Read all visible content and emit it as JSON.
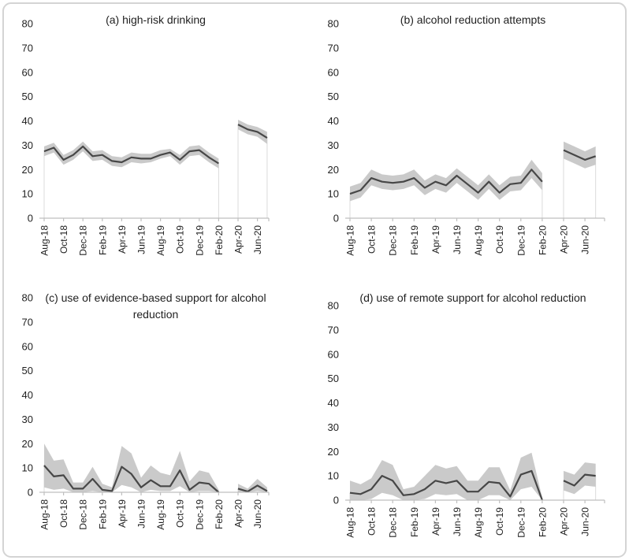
{
  "figure": {
    "kind": "2x2 panel line charts with confidence bands",
    "colors": {
      "mean_line": "#474747",
      "ci_band": "#c7c7c7",
      "axis": "#bfbfbf",
      "drop_line": "#dbdbdb",
      "frame_border": "#d4d4d4",
      "text": "#1f1f1f",
      "background": "#ffffff"
    }
  },
  "chart_data": [
    {
      "id": "a",
      "type": "line",
      "title": "(a) high-risk drinking",
      "ylim": [
        0,
        80
      ],
      "y_ticks": [
        80,
        70,
        60,
        50,
        40,
        30,
        20,
        10,
        0
      ],
      "x_tick_labels": [
        "Aug-18",
        "Oct-18",
        "Dec-18",
        "Feb-19",
        "Apr-19",
        "Jun-19",
        "Aug-19",
        "Oct-19",
        "Dec-19",
        "Feb-20",
        "Apr-20",
        "Jun-20"
      ],
      "legend": "none",
      "grid": "off",
      "segments": [
        {
          "x": [
            "Aug-18",
            "Sep-18",
            "Oct-18",
            "Nov-18",
            "Dec-18",
            "Jan-19",
            "Feb-19",
            "Mar-19",
            "Apr-19",
            "May-19",
            "Jun-19",
            "Jul-19",
            "Aug-19",
            "Sep-19",
            "Oct-19",
            "Nov-19",
            "Dec-19",
            "Jan-20",
            "Feb-20"
          ],
          "mean": [
            27.5,
            29,
            24,
            26,
            29.5,
            25.5,
            26,
            23.5,
            23,
            25,
            24.5,
            24.5,
            26,
            27,
            24,
            27.5,
            28,
            25,
            22.5
          ],
          "lower": [
            25.5,
            27,
            22,
            24,
            27.5,
            23.5,
            24,
            21.5,
            21,
            23,
            22.5,
            23,
            24.5,
            25.5,
            22,
            25.5,
            26,
            23,
            20.5
          ],
          "upper": [
            29.5,
            31,
            26,
            28,
            31.5,
            27.5,
            28,
            25.5,
            25,
            27,
            26.5,
            26.5,
            28,
            28.5,
            26,
            29.5,
            30,
            27,
            24.5
          ]
        },
        {
          "x": [
            "Apr-20",
            "May-20",
            "Jun-20",
            "Jul-20"
          ],
          "mean": [
            38.5,
            36.5,
            35.5,
            33
          ],
          "lower": [
            36.5,
            34.5,
            33.5,
            30.5
          ],
          "upper": [
            40.5,
            38.5,
            37.5,
            35.5
          ]
        }
      ]
    },
    {
      "id": "b",
      "type": "line",
      "title": "(b) alcohol reduction attempts",
      "ylim": [
        0,
        80
      ],
      "y_ticks": [
        80,
        70,
        60,
        50,
        40,
        30,
        20,
        10,
        0
      ],
      "x_tick_labels": [
        "Aug-18",
        "Oct-18",
        "Dec-18",
        "Feb-19",
        "Apr-19",
        "Jun-19",
        "Aug-19",
        "Oct-19",
        "Dec-19",
        "Feb-20",
        "Apr-20",
        "Jun-20"
      ],
      "legend": "none",
      "grid": "off",
      "segments": [
        {
          "x": [
            "Aug-18",
            "Sep-18",
            "Oct-18",
            "Nov-18",
            "Dec-18",
            "Jan-19",
            "Feb-19",
            "Mar-19",
            "Apr-19",
            "May-19",
            "Jun-19",
            "Jul-19",
            "Aug-19",
            "Sep-19",
            "Oct-19",
            "Nov-19",
            "Dec-19",
            "Jan-20",
            "Feb-20"
          ],
          "mean": [
            10,
            11.5,
            16.5,
            15,
            14.5,
            15,
            16.5,
            12.5,
            15,
            13.5,
            17.5,
            14,
            10.5,
            15,
            10.5,
            14,
            14.5,
            20,
            15
          ],
          "lower": [
            7,
            8.5,
            13.5,
            12,
            11.5,
            12,
            13.5,
            9.5,
            12,
            10.5,
            14.5,
            11,
            7.5,
            12,
            7.5,
            11,
            11.5,
            16.5,
            11.5
          ],
          "upper": [
            13,
            14.5,
            20,
            18,
            17.5,
            18,
            20,
            15.5,
            18,
            16.5,
            20.5,
            17,
            13.5,
            18,
            13.5,
            17,
            17.5,
            24,
            18.5
          ]
        },
        {
          "x": [
            "Apr-20",
            "May-20",
            "Jun-20",
            "Jul-20"
          ],
          "mean": [
            28,
            26,
            24,
            25.5
          ],
          "lower": [
            24.5,
            22.5,
            20.5,
            22
          ],
          "upper": [
            31.5,
            29.5,
            27.5,
            29.5
          ]
        }
      ]
    },
    {
      "id": "c",
      "type": "line",
      "title": "(c) use of evidence-based support for alcohol reduction",
      "ylim": [
        0,
        80
      ],
      "y_ticks": [
        80,
        70,
        60,
        50,
        40,
        30,
        20,
        10,
        0
      ],
      "x_tick_labels": [
        "Aug-18",
        "Oct-18",
        "Dec-18",
        "Feb-19",
        "Apr-19",
        "Jun-19",
        "Aug-19",
        "Oct-19",
        "Dec-19",
        "Feb-20",
        "Apr-20",
        "Jun-20"
      ],
      "legend": "none",
      "grid": "off",
      "segments": [
        {
          "x": [
            "Aug-18",
            "Sep-18",
            "Oct-18",
            "Nov-18",
            "Dec-18",
            "Jan-19",
            "Feb-19",
            "Mar-19",
            "Apr-19",
            "May-19",
            "Jun-19",
            "Jul-19",
            "Aug-19",
            "Sep-19",
            "Oct-19",
            "Nov-19",
            "Dec-19",
            "Jan-20",
            "Feb-20"
          ],
          "mean": [
            11,
            6.5,
            7,
            1.5,
            1.5,
            5.5,
            1,
            0.5,
            10.5,
            7.5,
            2,
            5,
            2.5,
            2.5,
            9,
            1,
            4,
            3.5,
            0
          ],
          "lower": [
            2,
            1,
            1.5,
            0,
            0,
            0.5,
            0,
            0,
            3,
            2,
            0,
            1,
            0.5,
            0.5,
            2.5,
            0,
            0.5,
            0.5,
            0
          ],
          "upper": [
            20,
            13,
            13.5,
            4,
            4,
            10.5,
            3.5,
            2,
            19,
            16,
            6,
            11,
            8,
            7,
            17,
            4.5,
            9,
            8,
            1
          ]
        },
        {
          "x": [
            "Apr-20",
            "May-20",
            "Jun-20",
            "Jul-20"
          ],
          "mean": [
            1.5,
            0.3,
            2.8,
            0.5
          ],
          "lower": [
            0,
            0,
            0.5,
            0
          ],
          "upper": [
            3.5,
            1.5,
            5.5,
            2
          ]
        }
      ]
    },
    {
      "id": "d",
      "type": "line",
      "title": "(d) use of remote support for alcohol reduction",
      "ylim": [
        0,
        80
      ],
      "y_ticks": [
        80,
        70,
        60,
        50,
        40,
        30,
        20,
        10,
        0
      ],
      "x_tick_labels": [
        "Aug-18",
        "Oct-18",
        "Dec-18",
        "Feb-19",
        "Apr-19",
        "Jun-19",
        "Aug-19",
        "Oct-19",
        "Dec-19",
        "Feb-20",
        "Apr-20",
        "Jun-20"
      ],
      "legend": "none",
      "grid": "off",
      "segments": [
        {
          "x": [
            "Aug-18",
            "Sep-18",
            "Oct-18",
            "Nov-18",
            "Dec-18",
            "Jan-19",
            "Feb-19",
            "Mar-19",
            "Apr-19",
            "May-19",
            "Jun-19",
            "Jul-19",
            "Aug-19",
            "Sep-19",
            "Oct-19",
            "Nov-19",
            "Dec-19",
            "Jan-20",
            "Feb-20"
          ],
          "mean": [
            3,
            2.5,
            4.5,
            10,
            8,
            2,
            2.5,
            4.5,
            8,
            7,
            8,
            3.5,
            3.5,
            7.5,
            7,
            1.5,
            10.5,
            12,
            0
          ],
          "lower": [
            0,
            0,
            0.5,
            3,
            2,
            0,
            0,
            0.5,
            2.5,
            2,
            2.5,
            0,
            0,
            2,
            2,
            0,
            4.5,
            5.5,
            0
          ],
          "upper": [
            8,
            6.5,
            9,
            16.5,
            14.5,
            4.5,
            5.5,
            10,
            14.5,
            13,
            14,
            8,
            8,
            13.5,
            13.5,
            4,
            17.5,
            19.5,
            1
          ]
        },
        {
          "x": [
            "Apr-20",
            "May-20",
            "Jun-20",
            "Jul-20"
          ],
          "mean": [
            8,
            6,
            10.5,
            10
          ],
          "lower": [
            4,
            2.5,
            6,
            5.5
          ],
          "upper": [
            12,
            10.5,
            15.5,
            15
          ]
        }
      ]
    }
  ]
}
